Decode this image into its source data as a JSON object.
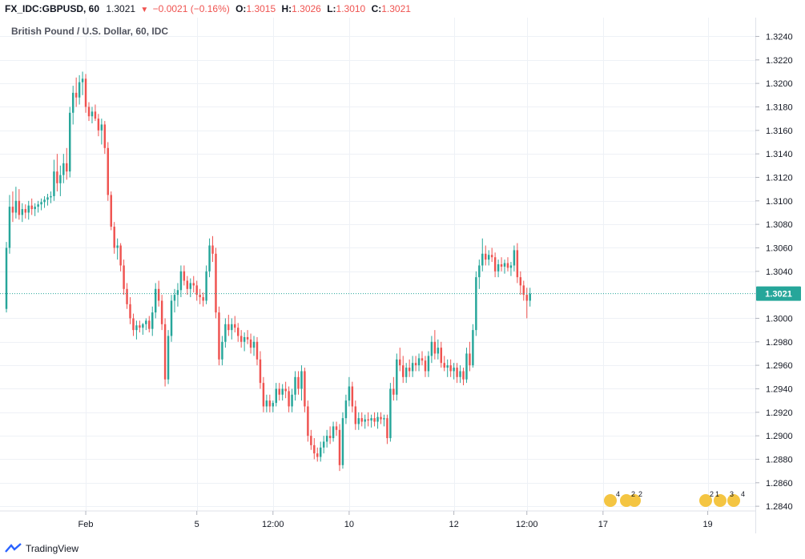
{
  "header": {
    "symbol": "FX_IDC:GBPUSD, 60",
    "last": "1.3021",
    "change": "−0.0021 (−0.16%)",
    "o_label": "O:",
    "o_value": "1.3015",
    "h_label": "H:",
    "h_value": "1.3026",
    "l_label": "L:",
    "l_value": "1.3010",
    "c_label": "C:",
    "c_value": "1.3021"
  },
  "footer": {
    "brand": "TradingView"
  },
  "colors": {
    "up": "#26a69a",
    "down": "#ef5350",
    "grid": "#eef1f6",
    "price_line": "#26a69a"
  },
  "events": {
    "group1": [
      "4",
      "2",
      "2"
    ],
    "group2": [
      "2",
      "1",
      "3",
      "4"
    ]
  },
  "chart_data": {
    "type": "candlestick",
    "title": "British Pound / U.S. Dollar, 60, IDC",
    "current_price_label": "1.3021",
    "current_price": 1.3021,
    "ylim": [
      1.2836,
      1.3256
    ],
    "yticks": [
      1.324,
      1.322,
      1.32,
      1.318,
      1.316,
      1.314,
      1.312,
      1.31,
      1.308,
      1.306,
      1.304,
      1.3,
      1.298,
      1.296,
      1.294,
      1.292,
      1.29,
      1.288,
      1.286,
      1.284
    ],
    "ytick_labels": [
      "1.3240",
      "1.3220",
      "1.3200",
      "1.3180",
      "1.3160",
      "1.3140",
      "1.3120",
      "1.3100",
      "1.3080",
      "1.3060",
      "1.3040",
      "1.3000",
      "1.2980",
      "1.2960",
      "1.2940",
      "1.2920",
      "1.2900",
      "1.2880",
      "1.2860",
      "1.2840"
    ],
    "xticks": [
      {
        "label": "Feb",
        "index": 25
      },
      {
        "label": "5",
        "index": 60
      },
      {
        "label": "12:00",
        "index": 84
      },
      {
        "label": "10",
        "index": 108
      },
      {
        "label": "12",
        "index": 141
      },
      {
        "label": "12:00",
        "index": 164
      },
      {
        "label": "17",
        "index": 188
      },
      {
        "label": "19",
        "index": 221
      }
    ],
    "index_range": [
      0,
      236
    ],
    "candles": [
      [
        1.3008,
        1.3065,
        1.3005,
        1.306
      ],
      [
        1.306,
        1.3105,
        1.3055,
        1.3095
      ],
      [
        1.3095,
        1.3108,
        1.3082,
        1.309
      ],
      [
        1.309,
        1.3112,
        1.3085,
        1.31
      ],
      [
        1.31,
        1.311,
        1.3084,
        1.3088
      ],
      [
        1.3088,
        1.3098,
        1.3082,
        1.3093
      ],
      [
        1.3093,
        1.3097,
        1.3085,
        1.309
      ],
      [
        1.309,
        1.31,
        1.3084,
        1.3096
      ],
      [
        1.3096,
        1.3102,
        1.3088,
        1.3093
      ],
      [
        1.3093,
        1.3098,
        1.3087,
        1.3095
      ],
      [
        1.3095,
        1.31,
        1.309,
        1.3097
      ],
      [
        1.3097,
        1.3102,
        1.3092,
        1.3099
      ],
      [
        1.3099,
        1.3104,
        1.3094,
        1.3101
      ],
      [
        1.3101,
        1.3106,
        1.3096,
        1.3103
      ],
      [
        1.3103,
        1.3108,
        1.3098,
        1.3104
      ],
      [
        1.3104,
        1.3135,
        1.31,
        1.3125
      ],
      [
        1.3125,
        1.314,
        1.3108,
        1.3115
      ],
      [
        1.3115,
        1.313,
        1.3104,
        1.3122
      ],
      [
        1.3122,
        1.314,
        1.3115,
        1.3132
      ],
      [
        1.3132,
        1.3145,
        1.3118,
        1.3125
      ],
      [
        1.3125,
        1.318,
        1.312,
        1.3175
      ],
      [
        1.3175,
        1.3198,
        1.3165,
        1.3192
      ],
      [
        1.3192,
        1.3205,
        1.318,
        1.3188
      ],
      [
        1.3188,
        1.3207,
        1.3182,
        1.3201
      ],
      [
        1.3201,
        1.321,
        1.319,
        1.3204
      ],
      [
        1.3204,
        1.3208,
        1.3175,
        1.318
      ],
      [
        1.318,
        1.3184,
        1.3168,
        1.3172
      ],
      [
        1.3172,
        1.318,
        1.3166,
        1.3176
      ],
      [
        1.3176,
        1.3182,
        1.3168,
        1.317
      ],
      [
        1.317,
        1.3174,
        1.3155,
        1.316
      ],
      [
        1.316,
        1.317,
        1.3148,
        1.3165
      ],
      [
        1.3165,
        1.3168,
        1.314,
        1.3145
      ],
      [
        1.3145,
        1.315,
        1.31,
        1.3105
      ],
      [
        1.3105,
        1.3108,
        1.3075,
        1.3078
      ],
      [
        1.3078,
        1.3082,
        1.3055,
        1.306
      ],
      [
        1.306,
        1.3068,
        1.305,
        1.3062
      ],
      [
        1.3062,
        1.3064,
        1.304,
        1.3045
      ],
      [
        1.3045,
        1.305,
        1.302,
        1.3025
      ],
      [
        1.3025,
        1.303,
        1.3008,
        1.3012
      ],
      [
        1.3012,
        1.3018,
        1.2995,
        1.3
      ],
      [
        1.3,
        1.3004,
        1.2985,
        1.299
      ],
      [
        1.299,
        1.2998,
        1.2982,
        1.2994
      ],
      [
        1.2994,
        1.2998,
        1.2988,
        1.2992
      ],
      [
        1.2992,
        1.2996,
        1.2986,
        1.2995
      ],
      [
        1.2995,
        1.3,
        1.299,
        1.2998
      ],
      [
        1.2998,
        1.3002,
        1.2988,
        1.2991
      ],
      [
        1.2991,
        1.301,
        1.2985,
        1.3005
      ],
      [
        1.3005,
        1.303,
        1.3,
        1.3025
      ],
      [
        1.3025,
        1.3032,
        1.301,
        1.3015
      ],
      [
        1.3015,
        1.302,
        1.299,
        1.2995
      ],
      [
        1.2995,
        1.3,
        1.2942,
        1.2948
      ],
      [
        1.2948,
        1.299,
        1.2944,
        1.2985
      ],
      [
        1.2985,
        1.302,
        1.298,
        1.3015
      ],
      [
        1.3015,
        1.3025,
        1.3005,
        1.302
      ],
      [
        1.302,
        1.303,
        1.301,
        1.3024
      ],
      [
        1.3024,
        1.3045,
        1.3018,
        1.304
      ],
      [
        1.304,
        1.3045,
        1.3028,
        1.3032
      ],
      [
        1.3032,
        1.3036,
        1.302,
        1.3025
      ],
      [
        1.3025,
        1.3034,
        1.3018,
        1.303
      ],
      [
        1.303,
        1.3036,
        1.3022,
        1.3028
      ],
      [
        1.3028,
        1.3032,
        1.3015,
        1.302
      ],
      [
        1.302,
        1.3025,
        1.3012,
        1.3018
      ],
      [
        1.3018,
        1.3022,
        1.301,
        1.3015
      ],
      [
        1.3015,
        1.3045,
        1.3012,
        1.304
      ],
      [
        1.304,
        1.3068,
        1.3035,
        1.3062
      ],
      [
        1.3062,
        1.307,
        1.3048,
        1.3055
      ],
      [
        1.3055,
        1.306,
        1.3,
        1.3005
      ],
      [
        1.3005,
        1.301,
        1.296,
        1.2965
      ],
      [
        1.2965,
        1.2985,
        1.296,
        1.298
      ],
      [
        1.298,
        1.3,
        1.2975,
        1.2995
      ],
      [
        1.2995,
        1.3003,
        1.2985,
        1.299
      ],
      [
        1.299,
        1.3,
        1.2982,
        1.2995
      ],
      [
        1.2995,
        1.3002,
        1.2988,
        1.2992
      ],
      [
        1.2992,
        1.2996,
        1.298,
        1.2985
      ],
      [
        1.2985,
        1.299,
        1.2975,
        1.298
      ],
      [
        1.298,
        1.2988,
        1.2972,
        1.2984
      ],
      [
        1.2984,
        1.299,
        1.2978,
        1.2982
      ],
      [
        1.2982,
        1.2987,
        1.297,
        1.2975
      ],
      [
        1.2975,
        1.2985,
        1.2968,
        1.298
      ],
      [
        1.298,
        1.2984,
        1.296,
        1.2965
      ],
      [
        1.2965,
        1.2972,
        1.294,
        1.2945
      ],
      [
        1.2945,
        1.295,
        1.292,
        1.2925
      ],
      [
        1.2925,
        1.2935,
        1.292,
        1.293
      ],
      [
        1.293,
        1.2935,
        1.292,
        1.2925
      ],
      [
        1.2925,
        1.293,
        1.292,
        1.2928
      ],
      [
        1.2928,
        1.2945,
        1.2925,
        1.294
      ],
      [
        1.294,
        1.2945,
        1.293,
        1.2935
      ],
      [
        1.2935,
        1.2944,
        1.293,
        1.294
      ],
      [
        1.294,
        1.2946,
        1.2932,
        1.2938
      ],
      [
        1.2938,
        1.2942,
        1.292,
        1.2925
      ],
      [
        1.2925,
        1.294,
        1.292,
        1.2935
      ],
      [
        1.2935,
        1.2955,
        1.293,
        1.295
      ],
      [
        1.295,
        1.2955,
        1.2935,
        1.294
      ],
      [
        1.294,
        1.296,
        1.293,
        1.2955
      ],
      [
        1.2955,
        1.2958,
        1.292,
        1.2925
      ],
      [
        1.2925,
        1.293,
        1.2895,
        1.29
      ],
      [
        1.29,
        1.2905,
        1.2888,
        1.2892
      ],
      [
        1.2892,
        1.2898,
        1.288,
        1.2885
      ],
      [
        1.2885,
        1.289,
        1.2878,
        1.2882
      ],
      [
        1.2882,
        1.2895,
        1.2878,
        1.289
      ],
      [
        1.289,
        1.29,
        1.2885,
        1.2895
      ],
      [
        1.2895,
        1.2905,
        1.289,
        1.29
      ],
      [
        1.29,
        1.2908,
        1.2893,
        1.2898
      ],
      [
        1.2898,
        1.2912,
        1.2895,
        1.2908
      ],
      [
        1.2908,
        1.2912,
        1.29,
        1.2905
      ],
      [
        1.2905,
        1.291,
        1.287,
        1.2875
      ],
      [
        1.2875,
        1.292,
        1.2872,
        1.2915
      ],
      [
        1.2915,
        1.2935,
        1.291,
        1.293
      ],
      [
        1.293,
        1.295,
        1.2925,
        1.2942
      ],
      [
        1.2942,
        1.2946,
        1.292,
        1.2925
      ],
      [
        1.2925,
        1.293,
        1.2905,
        1.291
      ],
      [
        1.291,
        1.292,
        1.2905,
        1.2915
      ],
      [
        1.2915,
        1.292,
        1.2908,
        1.2912
      ],
      [
        1.2912,
        1.2918,
        1.2906,
        1.2914
      ],
      [
        1.2914,
        1.292,
        1.2908,
        1.2913
      ],
      [
        1.2913,
        1.2918,
        1.2907,
        1.2915
      ],
      [
        1.2915,
        1.292,
        1.2908,
        1.2912
      ],
      [
        1.2912,
        1.292,
        1.2906,
        1.2916
      ],
      [
        1.2916,
        1.292,
        1.291,
        1.2914
      ],
      [
        1.2914,
        1.2918,
        1.2908,
        1.2915
      ],
      [
        1.2915,
        1.2918,
        1.2893,
        1.2898
      ],
      [
        1.2898,
        1.2945,
        1.2895,
        1.294
      ],
      [
        1.294,
        1.295,
        1.293,
        1.2935
      ],
      [
        1.2935,
        1.297,
        1.293,
        1.2965
      ],
      [
        1.2965,
        1.2975,
        1.2955,
        1.296
      ],
      [
        1.296,
        1.2968,
        1.2945,
        1.295
      ],
      [
        1.295,
        1.2962,
        1.2945,
        1.2958
      ],
      [
        1.2958,
        1.2965,
        1.295,
        1.2955
      ],
      [
        1.2955,
        1.2968,
        1.295,
        1.2962
      ],
      [
        1.2962,
        1.2968,
        1.2955,
        1.296
      ],
      [
        1.296,
        1.297,
        1.2955,
        1.2966
      ],
      [
        1.2966,
        1.2972,
        1.296,
        1.2964
      ],
      [
        1.2964,
        1.2968,
        1.295,
        1.2955
      ],
      [
        1.2955,
        1.2972,
        1.295,
        1.2968
      ],
      [
        1.2968,
        1.2985,
        1.2962,
        1.298
      ],
      [
        1.298,
        1.299,
        1.2965,
        1.297
      ],
      [
        1.297,
        1.2982,
        1.2965,
        1.2975
      ],
      [
        1.2975,
        1.298,
        1.2958,
        1.2962
      ],
      [
        1.2962,
        1.2968,
        1.2955,
        1.2958
      ],
      [
        1.2958,
        1.2965,
        1.295,
        1.296
      ],
      [
        1.296,
        1.2965,
        1.295,
        1.2955
      ],
      [
        1.2955,
        1.2962,
        1.2948,
        1.2958
      ],
      [
        1.2958,
        1.2962,
        1.2945,
        1.295
      ],
      [
        1.295,
        1.296,
        1.2945,
        1.2955
      ],
      [
        1.2955,
        1.2958,
        1.2943,
        1.2948
      ],
      [
        1.2948,
        1.2975,
        1.2945,
        1.297
      ],
      [
        1.297,
        1.298,
        1.2955,
        1.296
      ],
      [
        1.296,
        1.2995,
        1.2958,
        1.299
      ],
      [
        1.299,
        1.304,
        1.2985,
        1.3035
      ],
      [
        1.3035,
        1.305,
        1.3025,
        1.3045
      ],
      [
        1.3045,
        1.3068,
        1.304,
        1.3055
      ],
      [
        1.3055,
        1.3062,
        1.3045,
        1.305
      ],
      [
        1.305,
        1.3058,
        1.3045,
        1.3054
      ],
      [
        1.3054,
        1.306,
        1.3048,
        1.3052
      ],
      [
        1.3052,
        1.3056,
        1.3035,
        1.304
      ],
      [
        1.304,
        1.305,
        1.3035,
        1.3046
      ],
      [
        1.3046,
        1.3052,
        1.304,
        1.3044
      ],
      [
        1.3044,
        1.305,
        1.3038,
        1.3047
      ],
      [
        1.3047,
        1.3052,
        1.304,
        1.3043
      ],
      [
        1.3043,
        1.3048,
        1.3036,
        1.3045
      ],
      [
        1.3045,
        1.3062,
        1.304,
        1.3058
      ],
      [
        1.3058,
        1.3064,
        1.303,
        1.3035
      ],
      [
        1.3035,
        1.304,
        1.302,
        1.3028
      ],
      [
        1.3028,
        1.3032,
        1.3015,
        1.302
      ],
      [
        1.302,
        1.3026,
        1.3,
        1.3015
      ],
      [
        1.3015,
        1.3026,
        1.301,
        1.3021
      ]
    ]
  }
}
